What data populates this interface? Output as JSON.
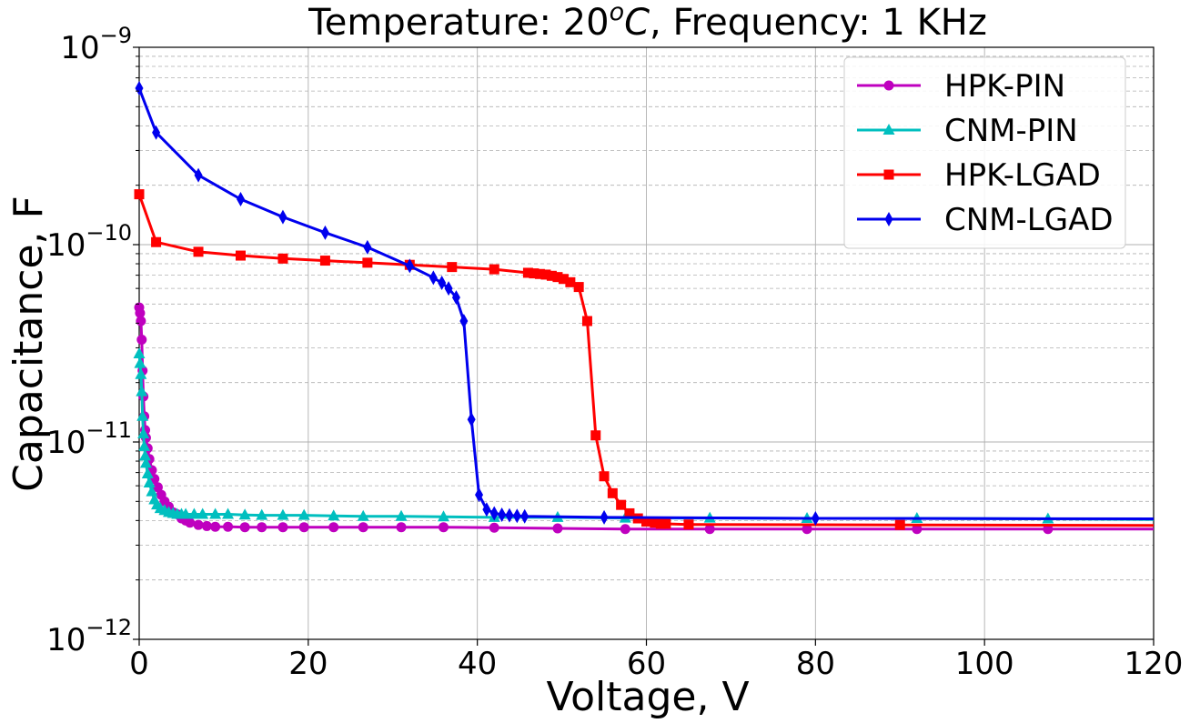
{
  "chart_data": {
    "type": "line",
    "title": {
      "prefix": "Temperature: 20",
      "superscript": "o",
      "suffix_italic": "C",
      "rest": ", Frequency: 1 KHz"
    },
    "xlabel": "Voltage, V",
    "ylabel": "Capacitance, F",
    "xlim": [
      0,
      120
    ],
    "ylim": [
      1e-12,
      1e-09
    ],
    "yscale": "log",
    "grid": true,
    "legend_position": "top-right",
    "x_ticks": [
      {
        "value": 0,
        "label": "0"
      },
      {
        "value": 20,
        "label": "20"
      },
      {
        "value": 40,
        "label": "40"
      },
      {
        "value": 60,
        "label": "60"
      },
      {
        "value": 80,
        "label": "80"
      },
      {
        "value": 100,
        "label": "100"
      },
      {
        "value": 120,
        "label": "120"
      }
    ],
    "y_ticks": [
      {
        "value": 1e-12,
        "base": "10",
        "exp": "−12"
      },
      {
        "value": 1e-11,
        "base": "10",
        "exp": "−11"
      },
      {
        "value": 1e-10,
        "base": "10",
        "exp": "−10"
      },
      {
        "value": 1e-09,
        "base": "10",
        "exp": "−9"
      }
    ],
    "series": [
      {
        "name": "HPK-PIN",
        "color": "#bf00bf",
        "marker": "circle",
        "x": [
          0,
          0.1,
          0.2,
          0.3,
          0.4,
          0.5,
          0.6,
          0.7,
          0.8,
          1.0,
          1.2,
          1.5,
          1.8,
          2.2,
          2.6,
          3.0,
          3.5,
          4.0,
          4.5,
          5.0,
          5.5,
          6.0,
          7.0,
          8.0,
          9.0,
          10.5,
          12.5,
          14.5,
          17,
          19.5,
          23,
          26.5,
          31,
          36,
          42,
          49.5,
          57.5,
          67.5,
          79,
          92,
          107.5,
          120
        ],
        "y": [
          4.8e-11,
          4.5e-11,
          4.1e-11,
          3.3e-11,
          2.3e-11,
          1.7e-11,
          1.35e-11,
          1.15e-11,
          1.05e-11,
          9.3e-12,
          8.2e-12,
          7.2e-12,
          6.5e-12,
          5.9e-12,
          5.4e-12,
          5e-12,
          4.7e-12,
          4.4e-12,
          4.3e-12,
          4.1e-12,
          4e-12,
          3.9e-12,
          3.8e-12,
          3.75e-12,
          3.72e-12,
          3.72e-12,
          3.7e-12,
          3.7e-12,
          3.7e-12,
          3.7e-12,
          3.7e-12,
          3.7e-12,
          3.7e-12,
          3.7e-12,
          3.68e-12,
          3.65e-12,
          3.62e-12,
          3.62e-12,
          3.62e-12,
          3.62e-12,
          3.62e-12,
          3.62e-12
        ]
      },
      {
        "name": "CNM-PIN",
        "color": "#00bfbf",
        "marker": "triangle",
        "x": [
          0,
          0.1,
          0.2,
          0.3,
          0.4,
          0.5,
          0.6,
          0.7,
          0.8,
          1.0,
          1.2,
          1.5,
          1.8,
          2.1,
          2.5,
          3.0,
          3.5,
          4.0,
          4.5,
          5.0,
          5.5,
          6.5,
          7.5,
          9.0,
          10.5,
          12.5,
          14.5,
          17,
          19.5,
          23,
          26.5,
          31,
          36,
          42,
          49.5,
          57.5,
          67.5,
          79,
          92,
          107.5,
          120
        ],
        "y": [
          2.8e-11,
          2.5e-11,
          2.2e-11,
          1.8e-11,
          1.35e-11,
          1.1e-11,
          9.5e-12,
          8.5e-12,
          7.8e-12,
          6.9e-12,
          6.2e-12,
          5.6e-12,
          5.1e-12,
          4.8e-12,
          4.6e-12,
          4.5e-12,
          4.4e-12,
          4.35e-12,
          4.3e-12,
          4.3e-12,
          4.3e-12,
          4.3e-12,
          4.3e-12,
          4.3e-12,
          4.3e-12,
          4.27e-12,
          4.25e-12,
          4.25e-12,
          4.25e-12,
          4.22e-12,
          4.2e-12,
          4.2e-12,
          4.18e-12,
          4.15e-12,
          4.15e-12,
          4.12e-12,
          4.12e-12,
          4.1e-12,
          4.1e-12,
          4.08e-12,
          4.05e-12
        ]
      },
      {
        "name": "HPK-LGAD",
        "color": "#ff0000",
        "marker": "square",
        "x": [
          0,
          2,
          7,
          12,
          17,
          22,
          27,
          32,
          37,
          42,
          46,
          46.7,
          47.4,
          48.1,
          48.8,
          49.5,
          50.2,
          51,
          52,
          53,
          54,
          55,
          56,
          57,
          58,
          59,
          60,
          61,
          61.7,
          62.3,
          65,
          90,
          120
        ],
        "y": [
          1.8e-10,
          1.03e-10,
          9.2e-11,
          8.8e-11,
          8.5e-11,
          8.3e-11,
          8.1e-11,
          7.9e-11,
          7.7e-11,
          7.5e-11,
          7.2e-11,
          7.15e-11,
          7.1e-11,
          7.05e-11,
          6.95e-11,
          6.85e-11,
          6.7e-11,
          6.45e-11,
          6.1e-11,
          4.1e-11,
          1.08e-11,
          6.7e-12,
          5.5e-12,
          4.8e-12,
          4.35e-12,
          4.1e-12,
          3.95e-12,
          3.9e-12,
          3.85e-12,
          3.85e-12,
          3.82e-12,
          3.8e-12,
          3.78e-12
        ]
      },
      {
        "name": "CNM-LGAD",
        "color": "#0000ee",
        "marker": "diamond",
        "x": [
          0,
          2,
          7,
          12,
          17,
          22,
          27,
          32,
          34.8,
          35.8,
          36.6,
          37.5,
          38.4,
          39.3,
          40.2,
          41.1,
          42,
          42.9,
          43.8,
          44.7,
          45.6,
          55,
          80,
          120
        ],
        "y": [
          6.2e-10,
          3.7e-10,
          2.25e-10,
          1.7e-10,
          1.38e-10,
          1.15e-10,
          9.7e-11,
          7.8e-11,
          6.8e-11,
          6.4e-11,
          6e-11,
          5.4e-11,
          4.1e-11,
          1.3e-11,
          5.4e-12,
          4.55e-12,
          4.35e-12,
          4.28e-12,
          4.25e-12,
          4.22e-12,
          4.2e-12,
          4.15e-12,
          4.1e-12,
          4.08e-12
        ]
      }
    ]
  }
}
